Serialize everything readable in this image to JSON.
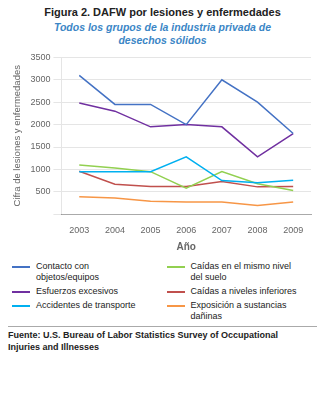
{
  "chart_data": {
    "type": "line",
    "title": "Figura 2. DAFW por lesiones y enfermedades",
    "subtitle": "Todos los grupos de la industria privada de\ndesechos sólidos",
    "xlabel": "Año",
    "ylabel": "Cifra de lesiones y enfermedades",
    "x": [
      2003,
      2004,
      2005,
      2006,
      2007,
      2008,
      2009
    ],
    "xlim": [
      2002.5,
      2009.5
    ],
    "xticks": [
      2003,
      2004,
      2005,
      2006,
      2007,
      2008,
      2009
    ],
    "series": [
      {
        "name": "Contacto con\nobjetos/equipos",
        "color": "#4472C4",
        "values": [
          3100,
          2450,
          2450,
          2000,
          3000,
          2500,
          1800
        ]
      },
      {
        "name": "Esfuerzos excesivos",
        "color": "#7030A0",
        "values": [
          2480,
          2300,
          1950,
          2000,
          1950,
          1280,
          1800
        ]
      },
      {
        "name": "Accidentes de transporte",
        "color": "#00B0F0",
        "values": [
          950,
          950,
          950,
          1280,
          750,
          700,
          760
        ]
      },
      {
        "name": "Caídas en el mismo nivel\ndel suelo",
        "color": "#92D050",
        "values": [
          1100,
          1030,
          950,
          580,
          950,
          680,
          530
        ]
      },
      {
        "name": "Caídas a niveles inferiores",
        "color": "#C0504D",
        "values": [
          960,
          670,
          620,
          620,
          730,
          610,
          620
        ]
      },
      {
        "name": "Exposición a sustancias\ndañinas",
        "color": "#F79646",
        "values": [
          390,
          360,
          290,
          270,
          270,
          195,
          275
        ]
      }
    ],
    "ylim": [
      0,
      3500
    ],
    "yticks": [
      {
        "value": 0,
        "label": null
      },
      500,
      1000,
      1500,
      2000,
      2500,
      3000,
      3500
    ],
    "grid": true,
    "legend": "bottom",
    "source": "Fuente: U.S. Bureau of Labor Statistics Survey of Occupational\nInjuries and Illnesses"
  }
}
